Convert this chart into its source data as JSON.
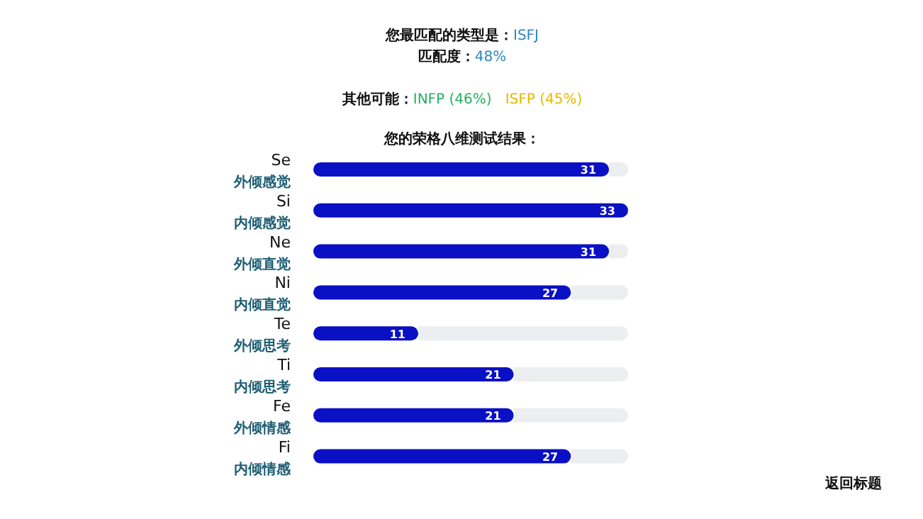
{
  "chart_data": {
    "type": "bar",
    "orientation": "horizontal",
    "title": "您最匹配的类型是：ISFJ",
    "subtitle": "匹配度：48%",
    "annotations": [
      "其他可能：INFP (46%)",
      "ISFP (45%)",
      "您的荣格八维测试结果：",
      "返回标题"
    ],
    "categories": [
      "Se\n外倾感觉",
      "Si\n内倾感觉",
      "Ne\n外倾直觉",
      "Ni\n内倾直觉",
      "Te\n外倾思考",
      "Ti\n内倾思考",
      "Fe\n外倾情感",
      "Fi\n内倾情感"
    ],
    "values": [
      31,
      33,
      31,
      27,
      11,
      21,
      21,
      27
    ],
    "color": "#0a10c4",
    "data_labels": true
  }
}
